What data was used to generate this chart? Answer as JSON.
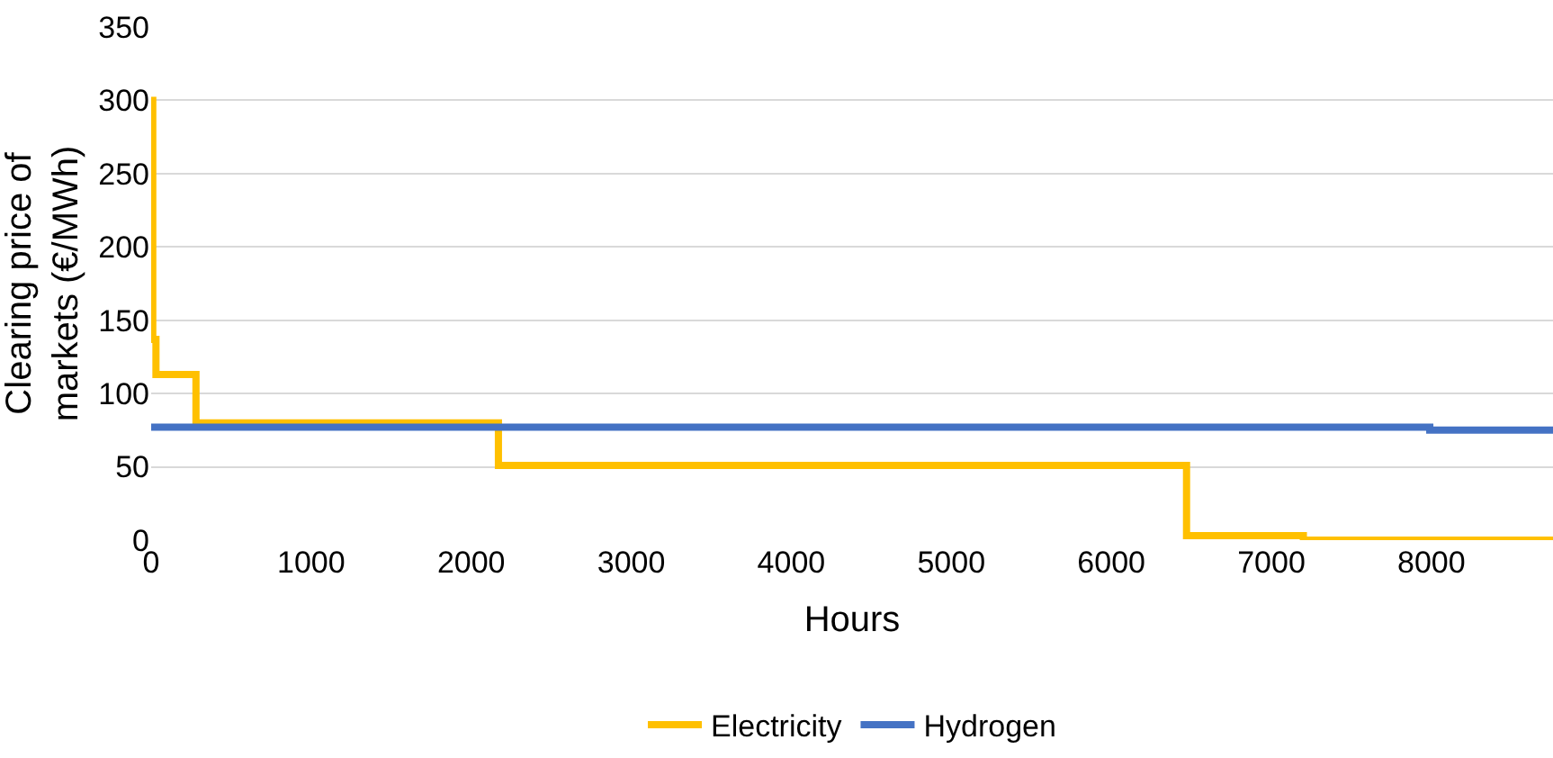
{
  "chart_data": {
    "type": "step",
    "xlabel": "Hours",
    "ylabel": "Clearing price of markets (€/MWh)",
    "xlim": [
      0,
      8760
    ],
    "xticks": [
      0,
      1000,
      2000,
      3000,
      4000,
      5000,
      6000,
      7000,
      8000
    ],
    "ylim": [
      0,
      350
    ],
    "yticks": [
      0,
      50,
      100,
      150,
      200,
      250,
      300,
      350
    ],
    "grid": "y",
    "legend": "bottom",
    "series": [
      {
        "name": "Electricity",
        "color": "#ffc000",
        "x": [
          0,
          10,
          30,
          280,
          2170,
          6470,
          7200,
          8760
        ],
        "values": [
          300,
          137,
          113,
          80,
          51,
          3,
          0,
          0
        ]
      },
      {
        "name": "Hydrogen",
        "color": "#4472c4",
        "x": [
          0,
          7990,
          8760
        ],
        "values": [
          77,
          75,
          75
        ]
      }
    ]
  }
}
